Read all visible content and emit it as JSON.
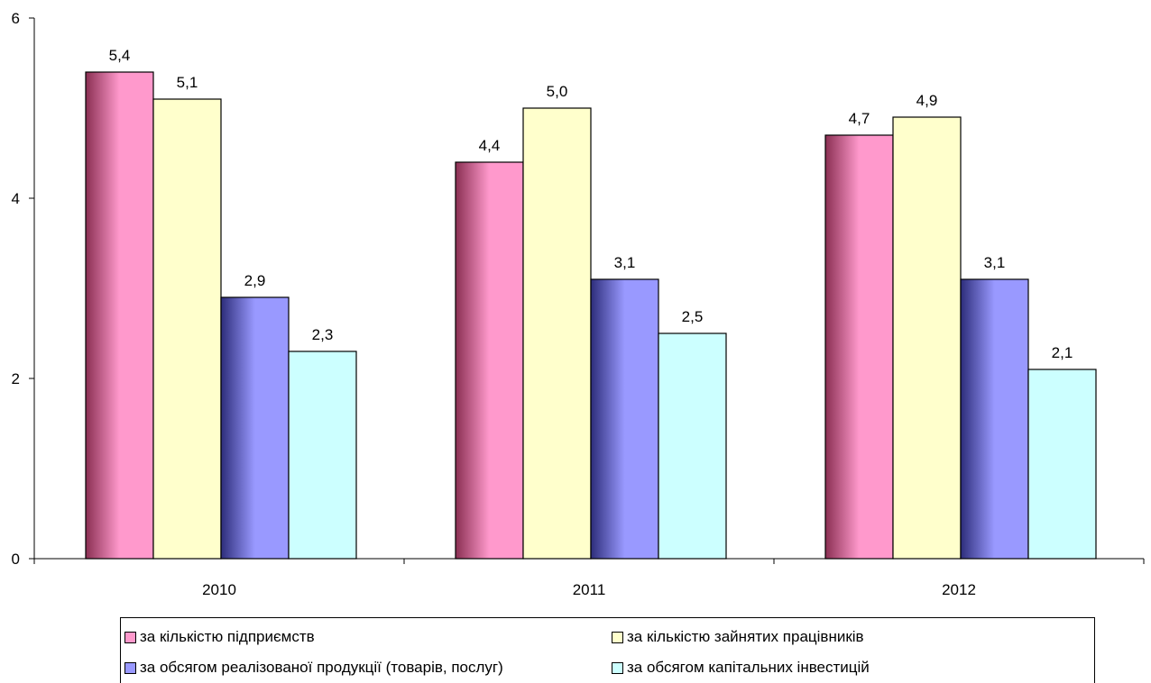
{
  "chart_data": {
    "type": "bar",
    "categories": [
      "2010",
      "2011",
      "2012"
    ],
    "series": [
      {
        "name": "за кількістю підприємств",
        "values": [
          5.4,
          4.4,
          4.7
        ],
        "color": "#ff99cc",
        "dark": "#8a2f52"
      },
      {
        "name": "за кількістю зайнятих працівників",
        "values": [
          5.1,
          5.0,
          4.9
        ],
        "color": "#ffffcc",
        "dark": "#ffffcc"
      },
      {
        "name": "за обсягом реалізованої продукції (товарів, послуг)",
        "values": [
          2.9,
          3.1,
          3.1
        ],
        "color": "#9999ff",
        "dark": "#2d2d7a"
      },
      {
        "name": "за обсягом капітальних інвестицій",
        "values": [
          2.3,
          2.5,
          2.1
        ],
        "color": "#ccffff",
        "dark": "#ccffff"
      }
    ],
    "data_labels": [
      [
        "5,4",
        "4,4",
        "4,7"
      ],
      [
        "5,1",
        "5,0",
        "4,9"
      ],
      [
        "2,9",
        "3,1",
        "3,1"
      ],
      [
        "2,3",
        "2,5",
        "2,1"
      ]
    ],
    "y_ticks": [
      "0",
      "2",
      "4",
      "6"
    ],
    "ylim": [
      0,
      6
    ],
    "title": "",
    "xlabel": "",
    "ylabel": "",
    "grid": false,
    "legend_position": "bottom"
  }
}
